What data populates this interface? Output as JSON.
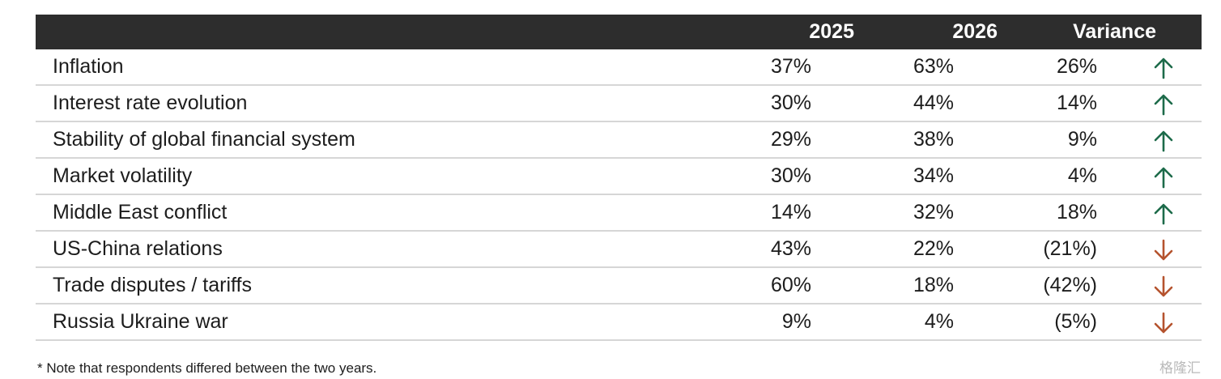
{
  "chart_data": {
    "type": "table",
    "columns": [
      "",
      "2025",
      "2026",
      "Variance"
    ],
    "rows": [
      {
        "label": "Inflation",
        "y2025": "37%",
        "y2026": "63%",
        "variance": "26%",
        "direction": "up"
      },
      {
        "label": "Interest rate evolution",
        "y2025": "30%",
        "y2026": "44%",
        "variance": "14%",
        "direction": "up"
      },
      {
        "label": "Stability of global financial system",
        "y2025": "29%",
        "y2026": "38%",
        "variance": "9%",
        "direction": "up"
      },
      {
        "label": "Market volatility",
        "y2025": "30%",
        "y2026": "34%",
        "variance": "4%",
        "direction": "up"
      },
      {
        "label": "Middle East conflict",
        "y2025": "14%",
        "y2026": "32%",
        "variance": "18%",
        "direction": "up"
      },
      {
        "label": "US-China relations",
        "y2025": "43%",
        "y2026": "22%",
        "variance": "(21%)",
        "direction": "down"
      },
      {
        "label": "Trade disputes / tariffs",
        "y2025": "60%",
        "y2026": "18%",
        "variance": "(42%)",
        "direction": "down"
      },
      {
        "label": "Russia Ukraine war",
        "y2025": "9%",
        "y2026": "4%",
        "variance": "(5%)",
        "direction": "down"
      }
    ],
    "note": "* Note that respondents differed between the two years.",
    "colors": {
      "header_bg": "#2d2d2d",
      "header_text": "#ffffff",
      "up_arrow": "#1d6b4a",
      "down_arrow": "#b5532e",
      "divider": "#d6d6d6"
    }
  },
  "watermark": "格隆汇"
}
